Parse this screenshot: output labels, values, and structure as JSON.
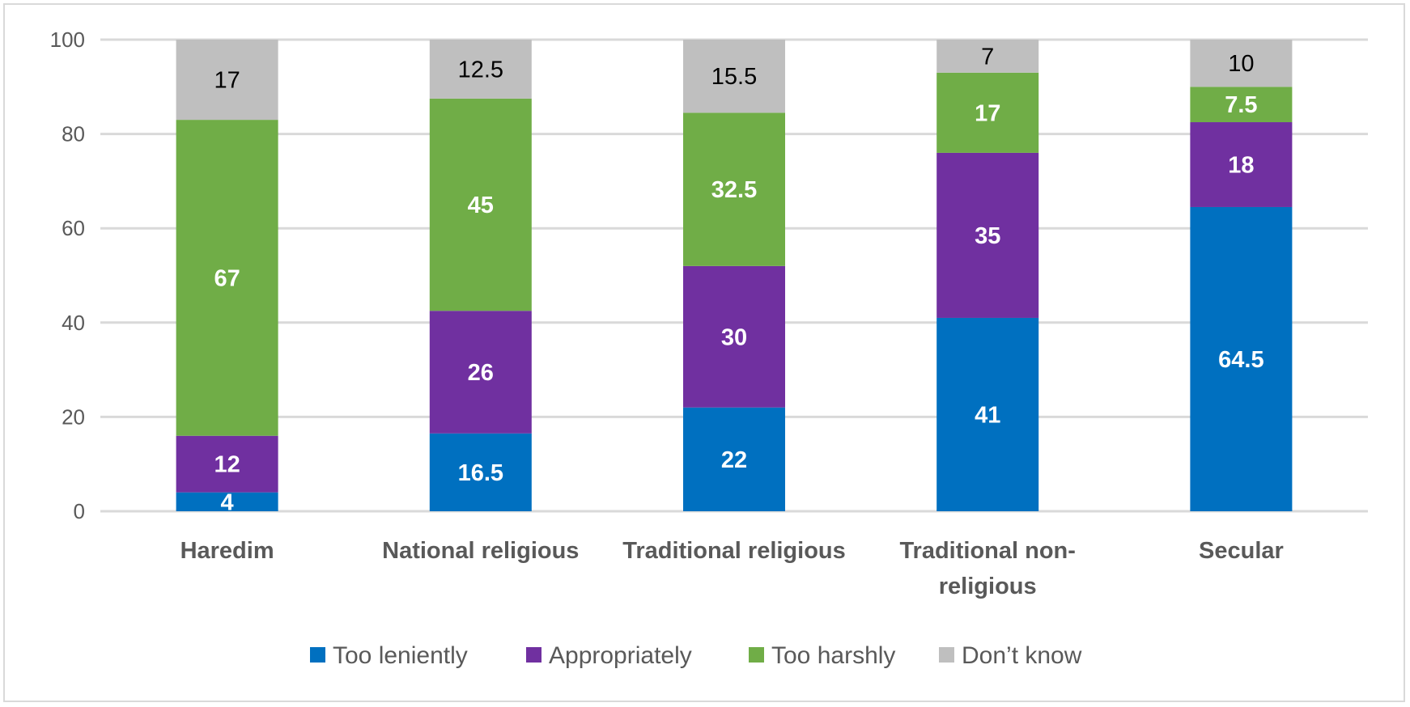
{
  "chart_data": {
    "type": "bar",
    "stacked": true,
    "title": "",
    "xlabel": "",
    "ylabel": "",
    "ylim": [
      0,
      100
    ],
    "yticks": [
      0,
      20,
      40,
      60,
      80,
      100
    ],
    "grid": true,
    "legend_position": "bottom",
    "categories": [
      [
        "Haredim"
      ],
      [
        "National religious"
      ],
      [
        "Traditional religious"
      ],
      [
        "Traditional non-",
        "religious"
      ],
      [
        "Secular"
      ]
    ],
    "series": [
      {
        "name": "Too leniently",
        "color": "#0070c0",
        "label_color": "#ffffff",
        "label_bold": true,
        "values": [
          4,
          16.5,
          22,
          41,
          64.5
        ]
      },
      {
        "name": "Appropriately",
        "color": "#7030a0",
        "label_color": "#ffffff",
        "label_bold": true,
        "values": [
          12,
          26,
          30,
          35,
          18
        ]
      },
      {
        "name": "Too harshly",
        "color": "#70ad47",
        "label_color": "#ffffff",
        "label_bold": true,
        "values": [
          67,
          45,
          32.5,
          17,
          7.5
        ]
      },
      {
        "name": "Don’t know",
        "color": "#bfbfbf",
        "label_color": "#000000",
        "label_bold": false,
        "values": [
          17,
          12.5,
          15.5,
          7,
          10
        ]
      }
    ]
  }
}
